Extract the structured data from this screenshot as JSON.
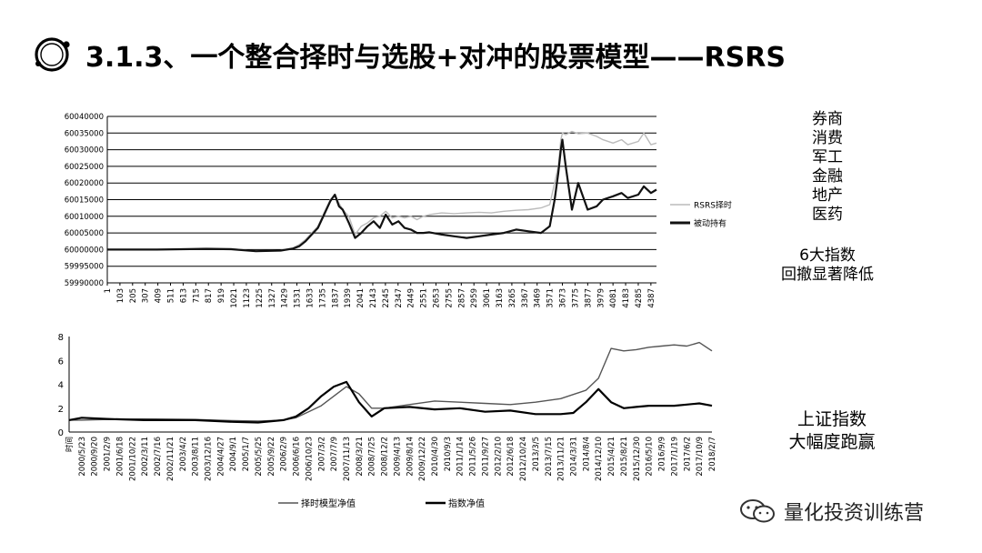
{
  "slide": {
    "title": "3.1.3、一个整合择时与选股+对冲的股票模型——RSRS",
    "sectors": [
      "券商",
      "消费",
      "军工",
      "金融",
      "地产",
      "医药"
    ],
    "note1": [
      "6大指数",
      "回撤显著降低"
    ],
    "note2": [
      "上证指数",
      "大幅度跑赢"
    ],
    "watermark": "量化投资训练营"
  },
  "chart_data": [
    {
      "type": "line",
      "title": "",
      "xlabel": "",
      "ylabel": "",
      "ylim": [
        59990000,
        60040000
      ],
      "yticks": [
        59990000,
        59995000,
        60000000,
        60005000,
        60010000,
        60015000,
        60020000,
        60025000,
        60030000,
        60035000,
        60040000
      ],
      "xlim": [
        1,
        4432
      ],
      "xticks": [
        1,
        103,
        205,
        307,
        409,
        511,
        613,
        715,
        817,
        919,
        1021,
        1123,
        1225,
        1327,
        1429,
        1531,
        1633,
        1735,
        1837,
        1939,
        2041,
        2143,
        2245,
        2347,
        2449,
        2551,
        2653,
        2755,
        2857,
        2959,
        3061,
        3163,
        3265,
        3367,
        3469,
        3571,
        3673,
        3775,
        3877,
        3979,
        4081,
        4183,
        4285,
        4387
      ],
      "grid": true,
      "legend": "right",
      "series": [
        {
          "name": "RSRS择时",
          "color": "#bbbbbb",
          "x": [
            1,
            400,
            800,
            1000,
            1200,
            1400,
            1500,
            1550,
            1600,
            1650,
            1700,
            1750,
            1800,
            1837,
            1870,
            1900,
            1950,
            2000,
            2050,
            2100,
            2150,
            2200,
            2247,
            2300,
            2350,
            2400,
            2450,
            2500,
            2551,
            2600,
            2700,
            2800,
            2900,
            3000,
            3100,
            3200,
            3300,
            3400,
            3500,
            3571,
            3610,
            3640,
            3660,
            3673,
            3700,
            3750,
            3800,
            3877,
            3950,
            4000,
            4081,
            4150,
            4200,
            4285,
            4330,
            4387,
            4432
          ],
          "values": [
            60000000,
            60000000,
            60000500,
            60000300,
            59999500,
            59999800,
            60000500,
            60001500,
            60003000,
            60005000,
            60007000,
            60011000,
            60015000,
            60016500,
            60014000,
            60012000,
            60010000,
            60004500,
            60007000,
            60008000,
            60009500,
            60010000,
            60011500,
            60009500,
            60010000,
            60009500,
            60010000,
            60009000,
            60010000,
            60010500,
            60011000,
            60010800,
            60011000,
            60011200,
            60011000,
            60011500,
            60011800,
            60012000,
            60012500,
            60013500,
            60020000,
            60025000,
            60033000,
            60035000,
            60034500,
            60035500,
            60034800,
            60035000,
            60034000,
            60033000,
            60032000,
            60033000,
            60031500,
            60032500,
            60035000,
            60031500,
            60032000
          ]
        },
        {
          "name": "被动持有",
          "color": "#111111",
          "x": [
            1,
            400,
            800,
            1000,
            1200,
            1400,
            1500,
            1550,
            1600,
            1650,
            1700,
            1750,
            1800,
            1837,
            1870,
            1900,
            1950,
            2000,
            2050,
            2100,
            2150,
            2200,
            2247,
            2300,
            2350,
            2400,
            2450,
            2500,
            2551,
            2600,
            2700,
            2800,
            2900,
            3000,
            3100,
            3200,
            3300,
            3400,
            3500,
            3571,
            3610,
            3640,
            3660,
            3673,
            3700,
            3750,
            3800,
            3877,
            3950,
            4000,
            4081,
            4150,
            4200,
            4285,
            4330,
            4387,
            4432
          ],
          "values": [
            60000000,
            60000000,
            60000200,
            60000100,
            59999500,
            59999700,
            60000300,
            60001000,
            60002500,
            60004500,
            60006500,
            60010500,
            60014500,
            60016500,
            60013000,
            60012000,
            60008000,
            60003500,
            60005000,
            60007000,
            60008500,
            60006500,
            60010500,
            60007500,
            60008500,
            60006500,
            60006000,
            60005000,
            60005000,
            60005200,
            60004500,
            60004000,
            60003500,
            60004000,
            60004500,
            60005000,
            60006000,
            60005500,
            60005000,
            60007000,
            60015000,
            60023000,
            60030000,
            60033000,
            60025000,
            60012000,
            60020000,
            60012000,
            60013000,
            60015000,
            60016000,
            60017000,
            60015500,
            60016500,
            60019000,
            60017000,
            60018000
          ]
        }
      ]
    },
    {
      "type": "line",
      "title": "",
      "xlabel": "",
      "ylabel": "",
      "ylim": [
        0,
        8
      ],
      "yticks": [
        0,
        2,
        4,
        6,
        8
      ],
      "x_start_label": "时间",
      "categories": [
        "时间",
        "2000/5/23",
        "2000/9/20",
        "2001/2/9",
        "2001/6/18",
        "2001/10/22",
        "2002/3/11",
        "2002/7/16",
        "2002/11/21",
        "2003/4/2",
        "2003/8/11",
        "2003/12/16",
        "2004/4/27",
        "2004/9/1",
        "2005/1/7",
        "2005/5/25",
        "2005/9/22",
        "2006/2/9",
        "2006/6/16",
        "2006/10/23",
        "2007/3/2",
        "2007/7/9",
        "2007/11/13",
        "2008/3/21",
        "2008/7/25",
        "2008/12/2",
        "2009/4/13",
        "2009/8/14",
        "2009/12/22",
        "2010/4/30",
        "2010/9/3",
        "2011/1/14",
        "2011/5/26",
        "2011/9/27",
        "2012/2/10",
        "2012/6/18",
        "2012/10/24",
        "2013/3/5",
        "2013/7/15",
        "2013/11/21",
        "2014/3/31",
        "2014/8/4",
        "2014/12/10",
        "2015/4/21",
        "2015/8/21",
        "2015/12/30",
        "2016/5/10",
        "2016/9/9",
        "2017/1/19",
        "2017/6/2",
        "2017/10/9",
        "2018/2/7"
      ],
      "grid": false,
      "legend": "bottom",
      "series": [
        {
          "name": "择时模型净值",
          "color": "#555555",
          "x": [
            0,
            1,
            3,
            6,
            10,
            13,
            15,
            17,
            18,
            19,
            20,
            21,
            22,
            23,
            24,
            25,
            27,
            29,
            31,
            33,
            35,
            37,
            39,
            41,
            42,
            43,
            44,
            45,
            46,
            47,
            48,
            49,
            50,
            51
          ],
          "values": [
            1.0,
            1.0,
            1.05,
            1.1,
            1.05,
            0.95,
            0.92,
            1.0,
            1.2,
            1.7,
            2.2,
            3.0,
            3.8,
            3.2,
            2.0,
            2.0,
            2.3,
            2.6,
            2.5,
            2.4,
            2.3,
            2.5,
            2.8,
            3.5,
            4.5,
            7.0,
            6.8,
            6.9,
            7.1,
            7.2,
            7.3,
            7.2,
            7.5,
            6.8
          ]
        },
        {
          "name": "指数净值",
          "color": "#000000",
          "x": [
            0,
            1,
            3,
            6,
            10,
            13,
            15,
            17,
            18,
            19,
            20,
            21,
            22,
            23,
            24,
            25,
            27,
            29,
            31,
            33,
            35,
            37,
            39,
            40,
            41,
            42,
            43,
            44,
            45,
            46,
            47,
            48,
            49,
            50,
            51
          ],
          "values": [
            1.0,
            1.2,
            1.1,
            1.0,
            1.0,
            0.85,
            0.8,
            1.0,
            1.3,
            2.0,
            3.0,
            3.8,
            4.2,
            2.5,
            1.3,
            2.0,
            2.1,
            1.9,
            2.0,
            1.7,
            1.8,
            1.5,
            1.5,
            1.6,
            2.5,
            3.6,
            2.5,
            2.0,
            2.1,
            2.2,
            2.2,
            2.2,
            2.3,
            2.4,
            2.2
          ]
        }
      ]
    }
  ]
}
